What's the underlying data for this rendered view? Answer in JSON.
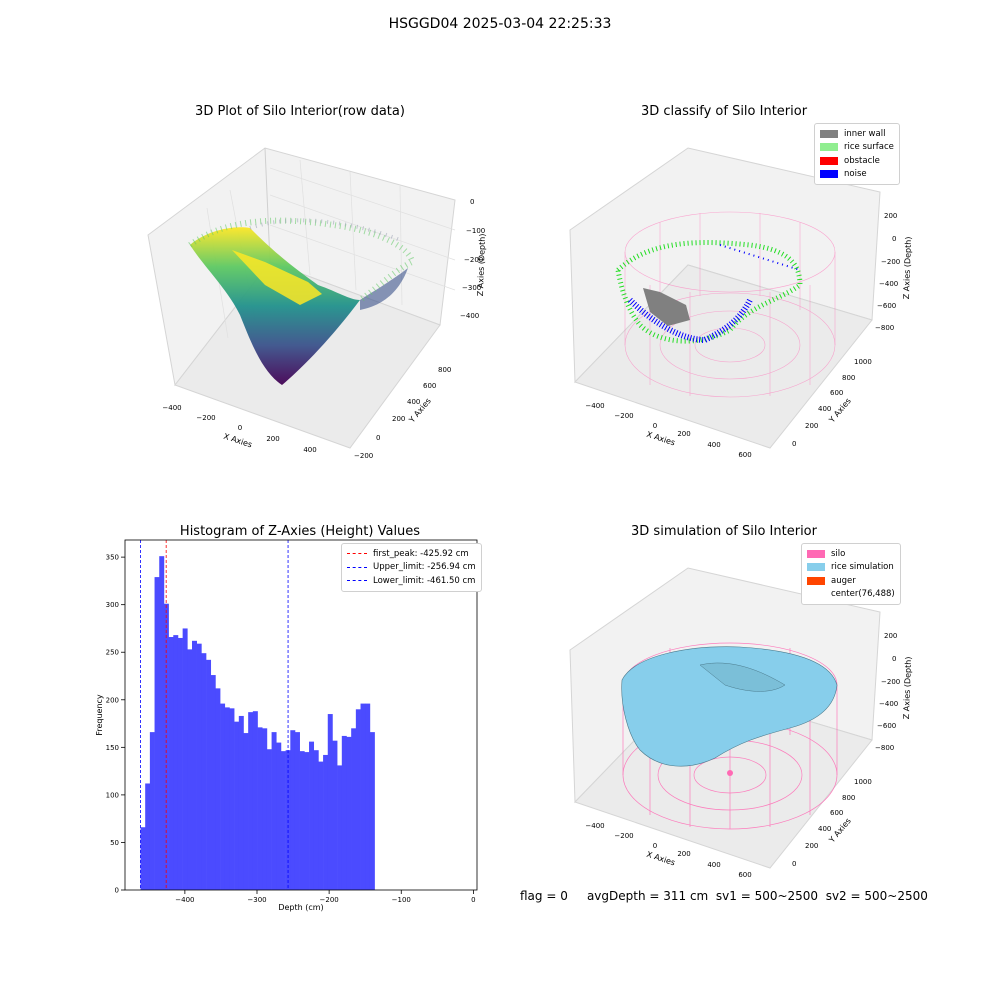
{
  "suptitle": "HSGGD04 2025-03-04 22:25:33",
  "status": {
    "flag": "flag = 0",
    "avg_depth": "avgDepth = 311 cm",
    "sv1": "sv1 = 500~2500",
    "sv2": "sv2 = 500~2500"
  },
  "panel1": {
    "title": "3D Plot of Silo Interior(row data)",
    "xlabel": "X Axies",
    "ylabel": "Y Axies",
    "zlabel": "Z Axies (Depth)",
    "x_ticks": [
      "−400",
      "−200",
      "0",
      "200",
      "400"
    ],
    "y_ticks": [
      "−200",
      "0",
      "200",
      "400",
      "600",
      "800"
    ],
    "z_ticks": [
      "0",
      "−100",
      "−200",
      "−300",
      "−400"
    ],
    "colormap": "viridis"
  },
  "panel2": {
    "title": "3D classify of Silo Interior",
    "xlabel": "X Axies",
    "ylabel": "Y Axies",
    "zlabel": "Z Axies (Depth)",
    "x_ticks": [
      "−400",
      "−200",
      "0",
      "200",
      "400",
      "600"
    ],
    "y_ticks": [
      "0",
      "200",
      "400",
      "600",
      "800",
      "1000"
    ],
    "z_ticks": [
      "200",
      "0",
      "−200",
      "−400",
      "−600",
      "−800"
    ],
    "legend": [
      {
        "label": "inner wall",
        "color": "#808080"
      },
      {
        "label": "rice surface",
        "color": "#90ee90"
      },
      {
        "label": "obstacle",
        "color": "#ff0000"
      },
      {
        "label": "noise",
        "color": "#0000ff"
      }
    ]
  },
  "panel4": {
    "title": "3D simulation of Silo Interior",
    "xlabel": "X Axies",
    "ylabel": "Y Axies",
    "zlabel": "Z Axies (Depth)",
    "x_ticks": [
      "−400",
      "−200",
      "0",
      "200",
      "400",
      "600"
    ],
    "y_ticks": [
      "0",
      "200",
      "400",
      "600",
      "800",
      "1000"
    ],
    "z_ticks": [
      "200",
      "0",
      "−200",
      "−400",
      "−600",
      "−800"
    ],
    "legend": [
      {
        "label": "silo",
        "color": "#ff69b4"
      },
      {
        "label": "rice simulation",
        "color": "#87ceeb"
      },
      {
        "label": "auger",
        "color": "#ff4500"
      },
      {
        "label": "center(76,488)",
        "color": ""
      }
    ]
  },
  "chart_data": {
    "type": "bar",
    "title": "Histogram of Z-Axies (Height) Values",
    "xlabel": "Depth (cm)",
    "ylabel": "Frequency",
    "bar_color": "#4b4bff",
    "bin_edges_start": -461.5,
    "bin_width": 6.49,
    "values": [
      66,
      112,
      166,
      329,
      351,
      301,
      266,
      268,
      265,
      275,
      253,
      262,
      259,
      249,
      242,
      226,
      212,
      196,
      192,
      191,
      177,
      183,
      165,
      187,
      188,
      171,
      170,
      148,
      166,
      155,
      146,
      147,
      168,
      166,
      146,
      145,
      156,
      147,
      135,
      142,
      185,
      157,
      131,
      162,
      161,
      170,
      190,
      196,
      196,
      166
    ],
    "xlim": [
      -483,
      5
    ],
    "ylim": [
      0,
      368
    ],
    "x_ticks": [
      -400,
      -300,
      -200,
      -100,
      0
    ],
    "x_tick_labels": [
      "−400",
      "−300",
      "−200",
      "−100",
      "0"
    ],
    "y_ticks": [
      0,
      50,
      100,
      150,
      200,
      250,
      300,
      350
    ],
    "y_tick_labels": [
      "0",
      "50",
      "100",
      "150",
      "200",
      "250",
      "300",
      "350"
    ],
    "lines": [
      {
        "label": "first_peak: -425.92 cm",
        "x": -425.92,
        "color": "#ff0000"
      },
      {
        "label": "Upper_limit: -256.94 cm",
        "x": -256.94,
        "color": "#0000ff"
      },
      {
        "label": "Lower_limit: -461.50 cm",
        "x": -461.5,
        "color": "#0000ff"
      }
    ],
    "legend_position": "upper right"
  }
}
